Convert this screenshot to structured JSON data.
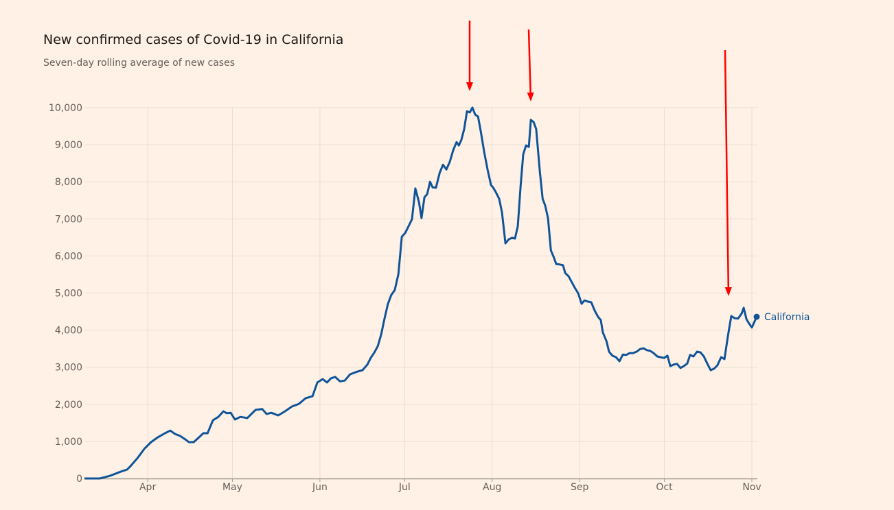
{
  "chart_data": {
    "type": "line",
    "title": "New confirmed cases of Covid-19 in California",
    "subtitle": "Seven-day rolling average of new cases",
    "xlabel": "",
    "ylabel": "",
    "x_unit": "days since Apr 1",
    "xlim": [
      -22.4,
      215.7
    ],
    "ylim": [
      0,
      10000
    ],
    "grid": true,
    "y_ticks": [
      0,
      1000,
      2000,
      3000,
      4000,
      5000,
      6000,
      7000,
      8000,
      9000,
      10000
    ],
    "y_tick_labels": [
      "0",
      "1,000",
      "2,000",
      "3,000",
      "4,000",
      "5,000",
      "6,000",
      "7,000",
      "8,000",
      "9,000",
      "10,000"
    ],
    "x_ticks": [
      0,
      30,
      61,
      91,
      122,
      153,
      183,
      214
    ],
    "x_tick_labels": [
      "Apr",
      "May",
      "Jun",
      "Jul",
      "Aug",
      "Sep",
      "Oct",
      "Nov"
    ],
    "series": [
      {
        "name": "California",
        "color": "#0f5499",
        "points": [
          [
            -22.4,
            0
          ],
          [
            -17.0,
            0
          ],
          [
            -13.4,
            70
          ],
          [
            -9.7,
            180
          ],
          [
            -7.3,
            240
          ],
          [
            -6.1,
            330
          ],
          [
            -3.6,
            550
          ],
          [
            -1.2,
            800
          ],
          [
            1.2,
            980
          ],
          [
            3.6,
            1110
          ],
          [
            6.1,
            1220
          ],
          [
            8.0,
            1290
          ],
          [
            9.7,
            1200
          ],
          [
            11.4,
            1150
          ],
          [
            13.4,
            1050
          ],
          [
            14.6,
            980
          ],
          [
            16.3,
            980
          ],
          [
            18.2,
            1110
          ],
          [
            19.7,
            1220
          ],
          [
            21.2,
            1220
          ],
          [
            23.1,
            1570
          ],
          [
            25.0,
            1660
          ],
          [
            26.8,
            1810
          ],
          [
            28.0,
            1760
          ],
          [
            29.4,
            1770
          ],
          [
            30.9,
            1590
          ],
          [
            32.8,
            1660
          ],
          [
            35.3,
            1630
          ],
          [
            38.2,
            1850
          ],
          [
            40.6,
            1870
          ],
          [
            42.1,
            1740
          ],
          [
            43.8,
            1770
          ],
          [
            46.2,
            1700
          ],
          [
            48.6,
            1810
          ],
          [
            51.1,
            1940
          ],
          [
            53.5,
            2010
          ],
          [
            55.9,
            2160
          ],
          [
            58.4,
            2220
          ],
          [
            60.1,
            2590
          ],
          [
            62.0,
            2680
          ],
          [
            63.5,
            2590
          ],
          [
            64.9,
            2700
          ],
          [
            66.4,
            2740
          ],
          [
            68.1,
            2620
          ],
          [
            69.8,
            2640
          ],
          [
            71.7,
            2810
          ],
          [
            74.2,
            2880
          ],
          [
            76.1,
            2920
          ],
          [
            77.8,
            3070
          ],
          [
            79.0,
            3250
          ],
          [
            80.3,
            3400
          ],
          [
            81.5,
            3570
          ],
          [
            82.7,
            3880
          ],
          [
            83.9,
            4320
          ],
          [
            85.1,
            4710
          ],
          [
            86.3,
            4950
          ],
          [
            87.5,
            5080
          ],
          [
            88.8,
            5510
          ],
          [
            90.0,
            6520
          ],
          [
            91.2,
            6620
          ],
          [
            92.4,
            6800
          ],
          [
            93.6,
            6990
          ],
          [
            94.8,
            7820
          ],
          [
            96.1,
            7450
          ],
          [
            97.0,
            7020
          ],
          [
            98.0,
            7580
          ],
          [
            99.0,
            7670
          ],
          [
            100.0,
            8000
          ],
          [
            100.9,
            7850
          ],
          [
            102.1,
            7840
          ],
          [
            103.4,
            8240
          ],
          [
            104.6,
            8460
          ],
          [
            105.8,
            8330
          ],
          [
            107.0,
            8540
          ],
          [
            108.2,
            8850
          ],
          [
            109.4,
            9070
          ],
          [
            110.2,
            8980
          ],
          [
            111.1,
            9130
          ],
          [
            112.1,
            9420
          ],
          [
            113.1,
            9900
          ],
          [
            114.1,
            9870
          ],
          [
            115.0,
            10000
          ],
          [
            116.0,
            9810
          ],
          [
            117.0,
            9760
          ],
          [
            117.9,
            9390
          ],
          [
            119.2,
            8800
          ],
          [
            120.4,
            8320
          ],
          [
            121.6,
            7910
          ],
          [
            122.3,
            7850
          ],
          [
            123.3,
            7720
          ],
          [
            124.5,
            7540
          ],
          [
            125.5,
            7170
          ],
          [
            126.7,
            6340
          ],
          [
            127.9,
            6450
          ],
          [
            129.1,
            6490
          ],
          [
            130.1,
            6470
          ],
          [
            131.1,
            6800
          ],
          [
            132.1,
            7910
          ],
          [
            133.0,
            8740
          ],
          [
            134.0,
            8980
          ],
          [
            135.0,
            8940
          ],
          [
            135.7,
            9670
          ],
          [
            136.7,
            9610
          ],
          [
            137.6,
            9420
          ],
          [
            138.9,
            8280
          ],
          [
            139.9,
            7540
          ],
          [
            140.8,
            7360
          ],
          [
            141.8,
            7020
          ],
          [
            142.8,
            6150
          ],
          [
            143.8,
            5970
          ],
          [
            144.7,
            5780
          ],
          [
            145.9,
            5770
          ],
          [
            147.1,
            5750
          ],
          [
            147.9,
            5540
          ],
          [
            149.1,
            5450
          ],
          [
            150.0,
            5320
          ],
          [
            151.3,
            5140
          ],
          [
            152.5,
            4990
          ],
          [
            153.7,
            4710
          ],
          [
            154.7,
            4800
          ],
          [
            155.9,
            4770
          ],
          [
            157.1,
            4750
          ],
          [
            158.3,
            4530
          ],
          [
            159.5,
            4360
          ],
          [
            160.5,
            4270
          ],
          [
            161.2,
            3940
          ],
          [
            162.5,
            3700
          ],
          [
            163.4,
            3420
          ],
          [
            164.6,
            3310
          ],
          [
            165.9,
            3270
          ],
          [
            167.1,
            3160
          ],
          [
            168.3,
            3340
          ],
          [
            169.5,
            3330
          ],
          [
            170.7,
            3380
          ],
          [
            171.9,
            3380
          ],
          [
            173.2,
            3420
          ],
          [
            174.4,
            3490
          ],
          [
            175.6,
            3510
          ],
          [
            176.8,
            3460
          ],
          [
            178.0,
            3440
          ],
          [
            179.2,
            3380
          ],
          [
            180.5,
            3290
          ],
          [
            181.7,
            3270
          ],
          [
            182.9,
            3250
          ],
          [
            184.1,
            3310
          ],
          [
            185.1,
            3030
          ],
          [
            186.3,
            3070
          ],
          [
            187.5,
            3090
          ],
          [
            188.7,
            2980
          ],
          [
            189.9,
            3030
          ],
          [
            191.1,
            3100
          ],
          [
            192.1,
            3330
          ],
          [
            193.3,
            3290
          ],
          [
            194.6,
            3420
          ],
          [
            195.8,
            3400
          ],
          [
            197.0,
            3290
          ],
          [
            198.2,
            3100
          ],
          [
            199.4,
            2920
          ],
          [
            200.6,
            2960
          ],
          [
            201.8,
            3050
          ],
          [
            203.1,
            3270
          ],
          [
            204.3,
            3220
          ],
          [
            205.5,
            3840
          ],
          [
            206.7,
            4380
          ],
          [
            207.9,
            4320
          ],
          [
            209.1,
            4310
          ],
          [
            210.4,
            4450
          ],
          [
            211.1,
            4600
          ],
          [
            212.1,
            4290
          ],
          [
            213.0,
            4180
          ],
          [
            214.0,
            4070
          ],
          [
            215.7,
            4360
          ]
        ]
      }
    ],
    "legend": "inline-end-label",
    "annotation_color": "#ff0000"
  }
}
